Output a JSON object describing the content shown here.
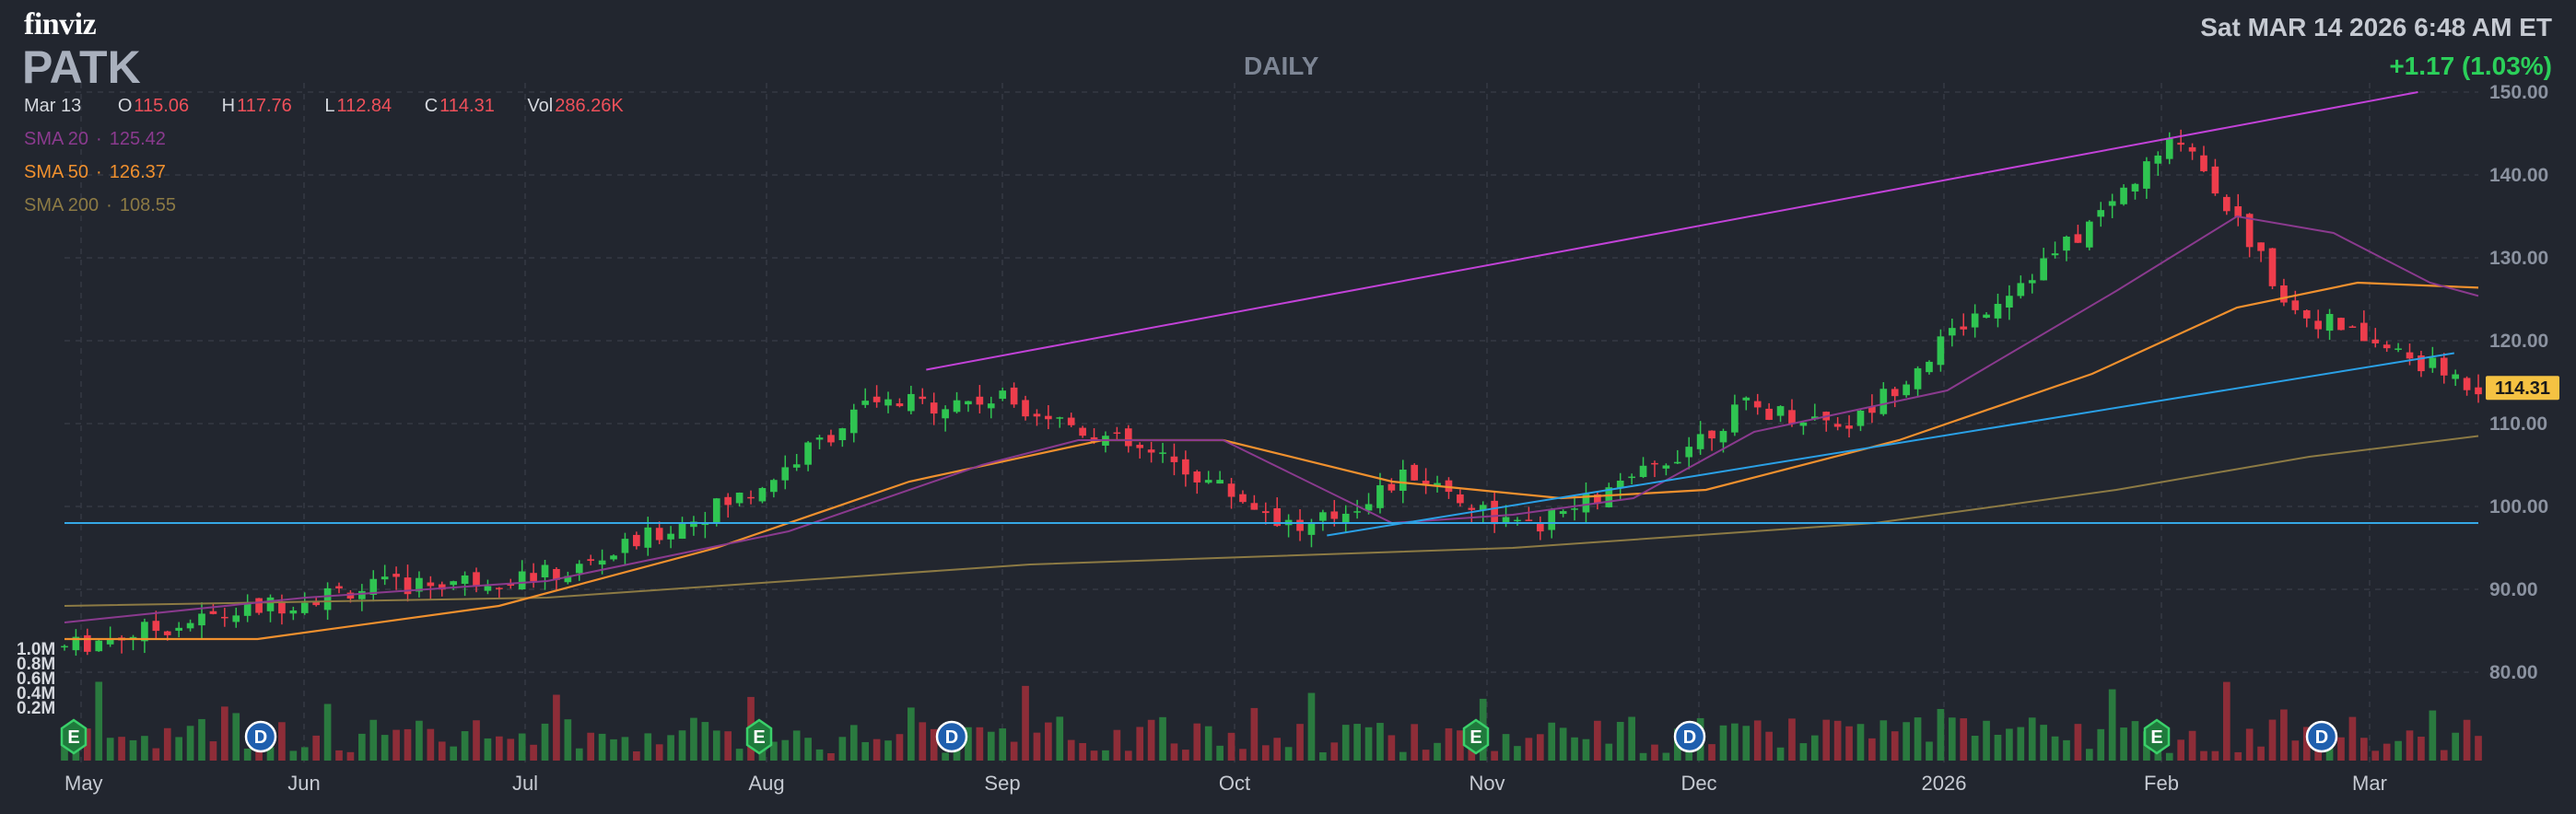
{
  "brand": "finviz",
  "ticker": "PATK",
  "period": "DAILY",
  "datetime": "Sat MAR 14 2026 6:48 AM ET",
  "change": "+1.17 (1.03%)",
  "ohlc": {
    "date": "Mar 13",
    "o_label": "O",
    "o": "115.06",
    "h_label": "H",
    "h": "117.76",
    "l_label": "L",
    "l": "112.84",
    "c_label": "C",
    "c": "114.31",
    "vol_label": "Vol",
    "vol": "286.26K"
  },
  "sma": [
    {
      "label": "SMA 20",
      "value": "125.42",
      "color": "#8a3a8e"
    },
    {
      "label": "SMA 50",
      "value": "126.37",
      "color": "#f0902e"
    },
    {
      "label": "SMA 200",
      "value": "108.55",
      "color": "#8c7a44"
    }
  ],
  "last_price_tag": "114.31",
  "colors": {
    "up": "#2fc451",
    "down": "#ee3d4c",
    "vol_up": "#2a7a3f",
    "vol_down": "#8e2d38",
    "channel": "#c242d8",
    "trendline": "#2aa0e6",
    "support": "#35a8e6",
    "price_tag": "#f5c242"
  },
  "chart_data": {
    "type": "candlestick",
    "price_axis": {
      "min": 70,
      "max": 150,
      "ticks": [
        "150.00",
        "140.00",
        "130.00",
        "120.00",
        "110.00",
        "100.00",
        "90.00",
        "80.00"
      ],
      "side": "right"
    },
    "volume_axis": {
      "ticks": [
        "1.0M",
        "0.8M",
        "0.6M",
        "0.4M",
        "0.2M"
      ]
    },
    "x_labels": [
      "May",
      "Jun",
      "Jul",
      "Aug",
      "Sep",
      "Oct",
      "Nov",
      "Dec",
      "2026",
      "Feb",
      "Mar"
    ],
    "grid": true,
    "events": [
      {
        "type": "E",
        "month": "May"
      },
      {
        "type": "D",
        "month": "Jun"
      },
      {
        "type": "E",
        "month": "Aug"
      },
      {
        "type": "D",
        "month": "Sep"
      },
      {
        "type": "E",
        "month": "Nov"
      },
      {
        "type": "D",
        "month": "Dec"
      },
      {
        "type": "E",
        "month": "Feb"
      },
      {
        "type": "D",
        "month": "Mar"
      }
    ],
    "anchors": [
      [
        "May",
        83
      ],
      [
        "Jun",
        90
      ],
      [
        "Jul",
        92
      ],
      [
        "Aug",
        102
      ],
      [
        "Aug",
        112
      ],
      [
        "Sep",
        113
      ],
      [
        "Oct",
        104
      ],
      [
        "Oct",
        97
      ],
      [
        "Nov",
        104
      ],
      [
        "Nov",
        97
      ],
      [
        "Dec",
        103
      ],
      [
        "Dec",
        112
      ],
      [
        "2026",
        110
      ],
      [
        "2026",
        122
      ],
      [
        "Feb",
        132
      ],
      [
        "Feb",
        145
      ],
      [
        "Mar",
        124
      ],
      [
        "Mar",
        114.31
      ]
    ],
    "sma20": [
      [
        0,
        86
      ],
      [
        0.1,
        89
      ],
      [
        0.2,
        91
      ],
      [
        0.3,
        97
      ],
      [
        0.38,
        105
      ],
      [
        0.42,
        108
      ],
      [
        0.48,
        108
      ],
      [
        0.55,
        98
      ],
      [
        0.6,
        99
      ],
      [
        0.65,
        101
      ],
      [
        0.7,
        109
      ],
      [
        0.78,
        114
      ],
      [
        0.85,
        126
      ],
      [
        0.9,
        135
      ],
      [
        0.94,
        133
      ],
      [
        0.98,
        127
      ],
      [
        1.0,
        125.4
      ]
    ],
    "sma50": [
      [
        0,
        84
      ],
      [
        0.08,
        84
      ],
      [
        0.18,
        88
      ],
      [
        0.27,
        95
      ],
      [
        0.35,
        103
      ],
      [
        0.43,
        108
      ],
      [
        0.48,
        108
      ],
      [
        0.55,
        103
      ],
      [
        0.62,
        101
      ],
      [
        0.68,
        102
      ],
      [
        0.76,
        108
      ],
      [
        0.84,
        116
      ],
      [
        0.9,
        124
      ],
      [
        0.95,
        127
      ],
      [
        1.0,
        126.4
      ]
    ],
    "sma200": [
      [
        0,
        88
      ],
      [
        0.2,
        89
      ],
      [
        0.4,
        93
      ],
      [
        0.6,
        95
      ],
      [
        0.75,
        98
      ],
      [
        0.85,
        102
      ],
      [
        0.93,
        106
      ],
      [
        1.0,
        108.5
      ]
    ],
    "lines": {
      "channel": [
        [
          0.357,
          116.5
        ],
        [
          0.975,
          150
        ]
      ],
      "trendline": [
        [
          0.523,
          96.5
        ],
        [
          0.99,
          118.5
        ]
      ],
      "support": [
        [
          0,
          98
        ],
        [
          1.0,
          98
        ]
      ]
    }
  }
}
